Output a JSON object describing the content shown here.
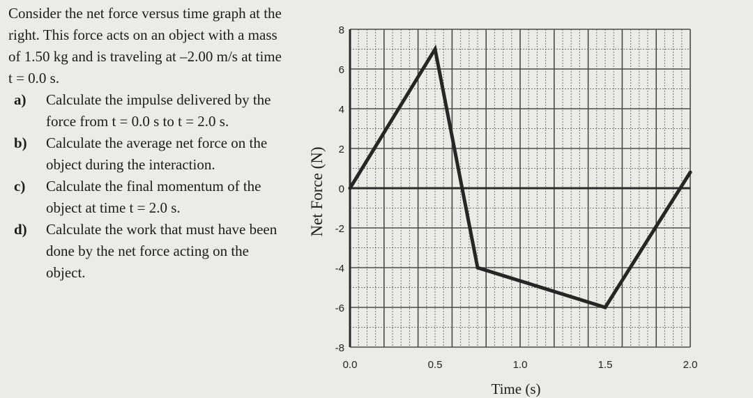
{
  "problem": {
    "intro": "Consider the net force versus time graph at the right. This force acts on an object with a mass of 1.50 kg and is traveling at –2.00 m/s at time t = 0.0 s.",
    "questions": [
      {
        "label": "a)",
        "text": "Calculate the impulse delivered by the force from t = 0.0 s to t = 2.0 s."
      },
      {
        "label": "b)",
        "text": "Calculate the average net force on the object during the interaction."
      },
      {
        "label": "c)",
        "text": "Calculate the final momentum of the object at time t = 2.0 s."
      },
      {
        "label": "d)",
        "text": "Calculate the work that must have been done by the net force acting on the object."
      }
    ]
  },
  "chart_data": {
    "type": "line",
    "title": "",
    "xlabel": "Time (s)",
    "ylabel": "Net Force (N)",
    "xlim": [
      0,
      2.0
    ],
    "ylim": [
      -8,
      8
    ],
    "grid": true,
    "x_ticks": [
      "0.0",
      "0.5",
      "1.0",
      "1.5",
      "2.0"
    ],
    "y_ticks": [
      "8",
      "6",
      "4",
      "2",
      "0",
      "-2",
      "-4",
      "-6",
      "-8"
    ],
    "series": [
      {
        "x": [
          0.0,
          0.5,
          0.75,
          1.5,
          2.0
        ],
        "y": [
          0,
          7,
          -4,
          -6,
          0.8
        ]
      }
    ],
    "colors": {
      "line": "#262626",
      "grid": "#4a4a4a",
      "axis": "#2a2a2a"
    }
  }
}
